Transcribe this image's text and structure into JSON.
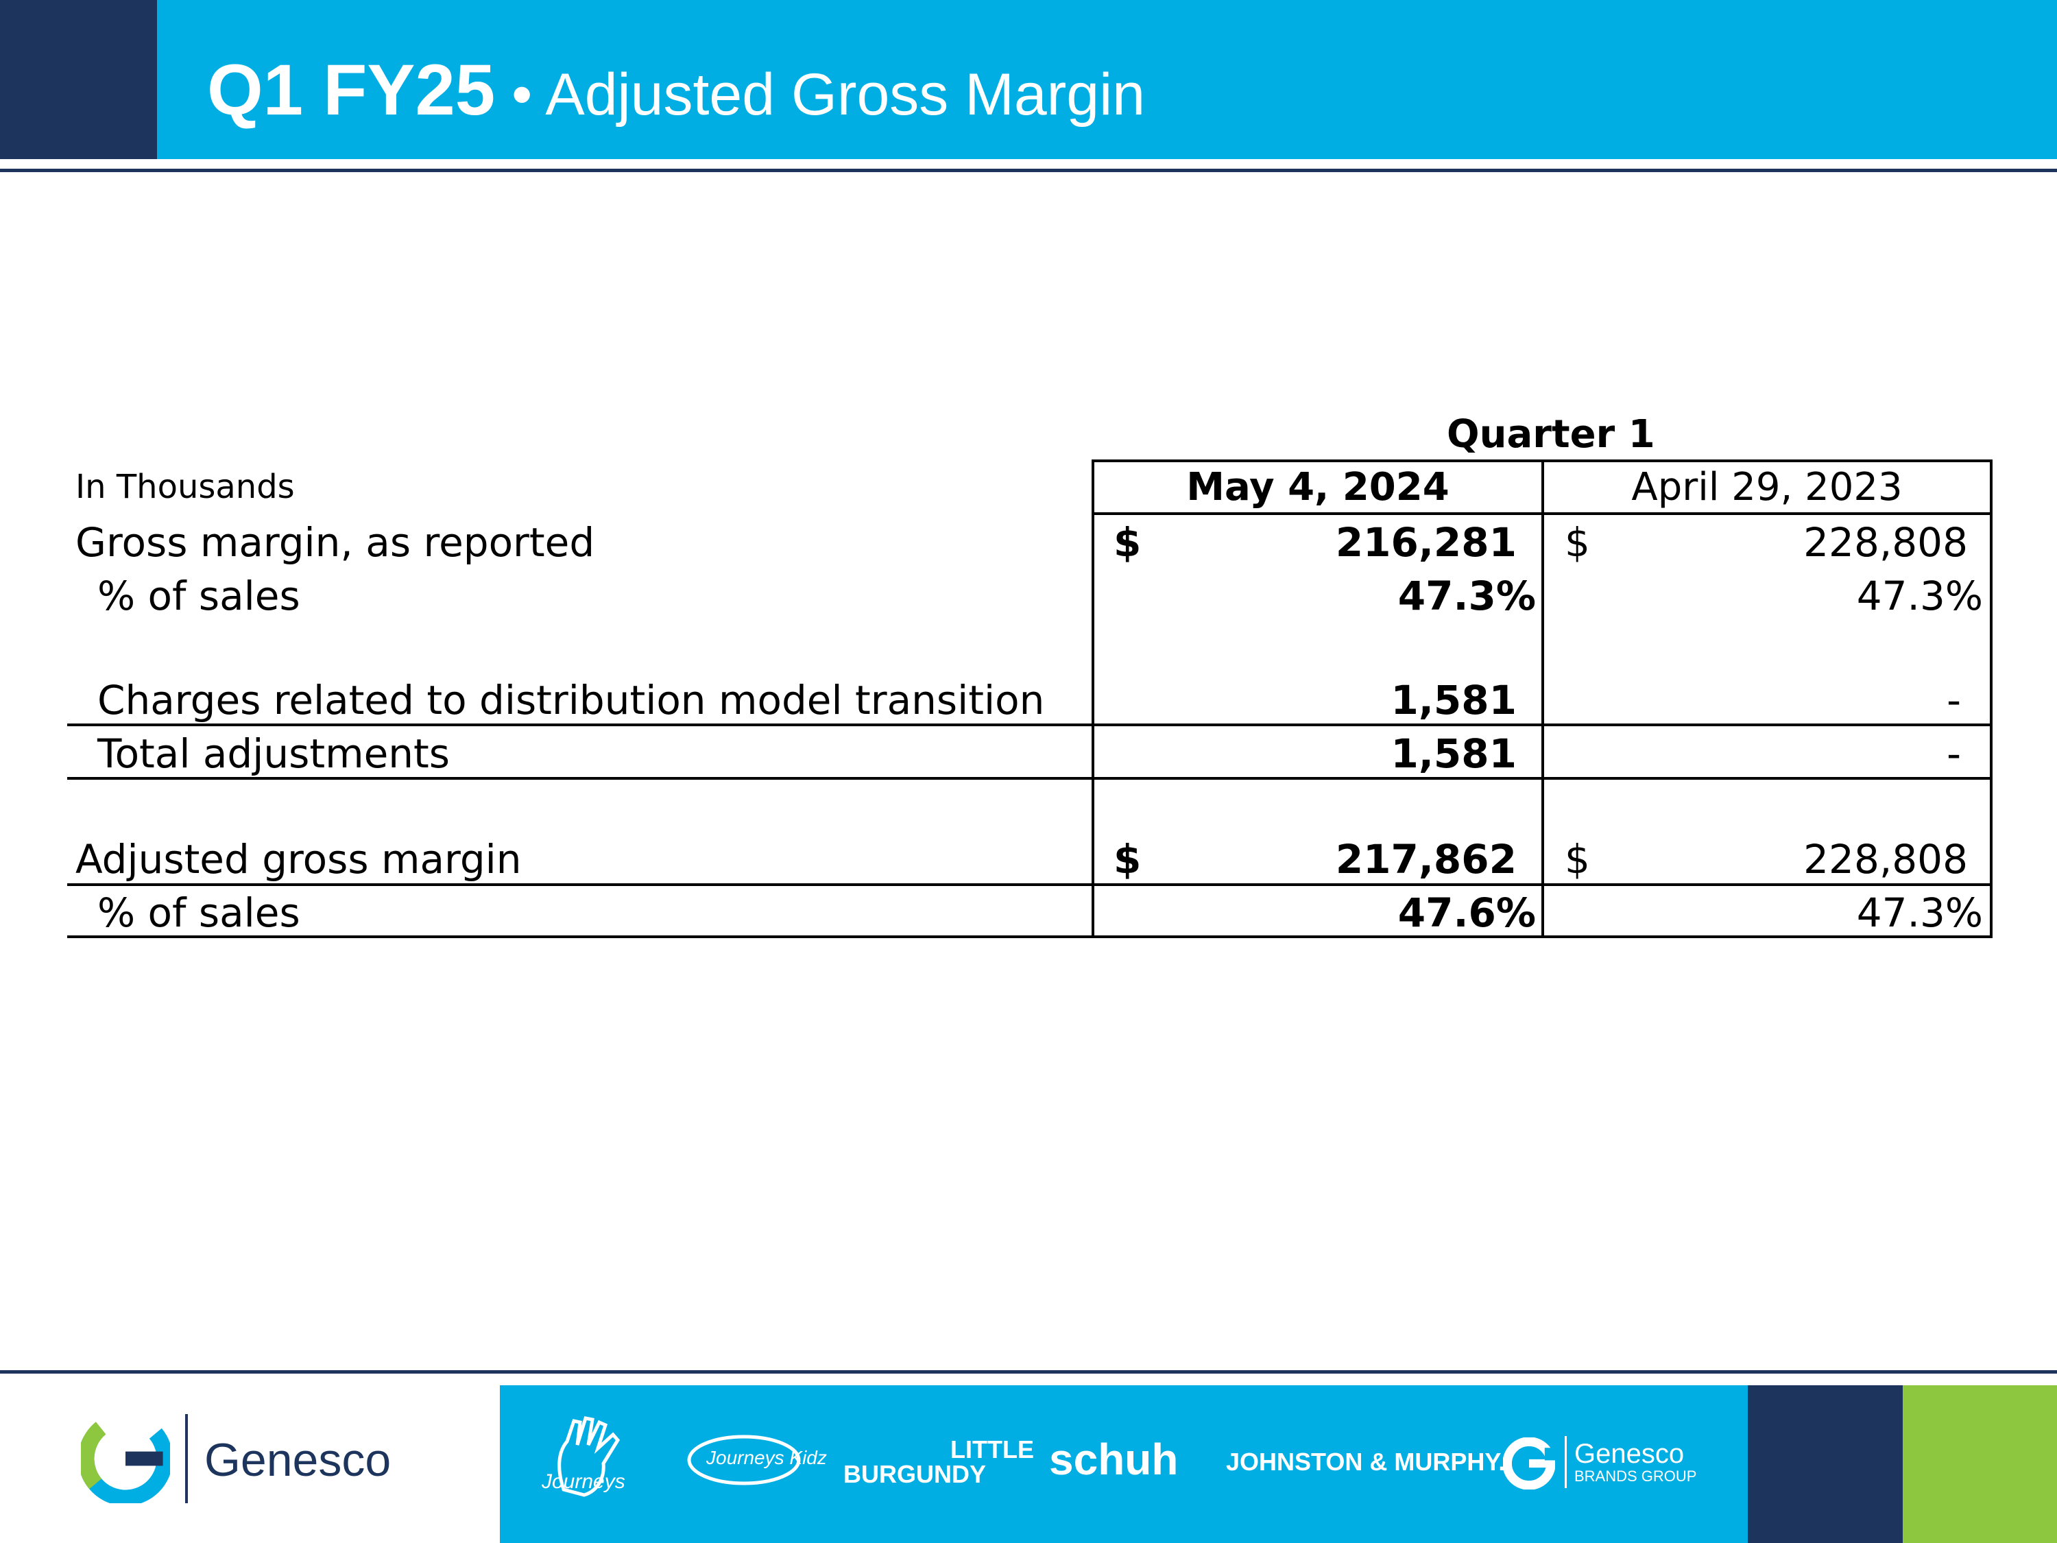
{
  "header": {
    "title_bold": "Q1 FY25",
    "title_rest": " • Adjusted Gross Margin"
  },
  "table": {
    "units_label": "In Thousands",
    "period_header": "Quarter 1",
    "col_current": "May 4, 2024",
    "col_prior": "April 29, 2023",
    "rows": [
      {
        "label": "Gross margin, as reported",
        "cur_sym": "$",
        "cur": "216,281",
        "prior_sym": "$",
        "prior": "228,808"
      },
      {
        "label": "% of sales",
        "cur": "47.3%",
        "prior": "47.3%"
      },
      {
        "label": "Charges related to distribution model transition",
        "cur": "1,581",
        "prior": "-"
      },
      {
        "label": "Total adjustments",
        "cur": "1,581",
        "prior": "-"
      },
      {
        "label": "Adjusted gross margin",
        "cur_sym": "$",
        "cur": "217,862",
        "prior_sym": "$",
        "prior": "228,808"
      },
      {
        "label": "% of sales",
        "cur": "47.6%",
        "prior": "47.3%"
      }
    ]
  },
  "footer": {
    "company": "Genesco",
    "brands": [
      "Journeys",
      "Journeys Kidz",
      "LITTLE",
      "BURGUNDY",
      "schuh",
      "JOHNSTON & MURPHY.",
      "Genesco",
      "BRANDS GROUP"
    ],
    "colors": {
      "navy": "#1d355c",
      "blue": "#00aee4",
      "green": "#8dc63f"
    }
  }
}
